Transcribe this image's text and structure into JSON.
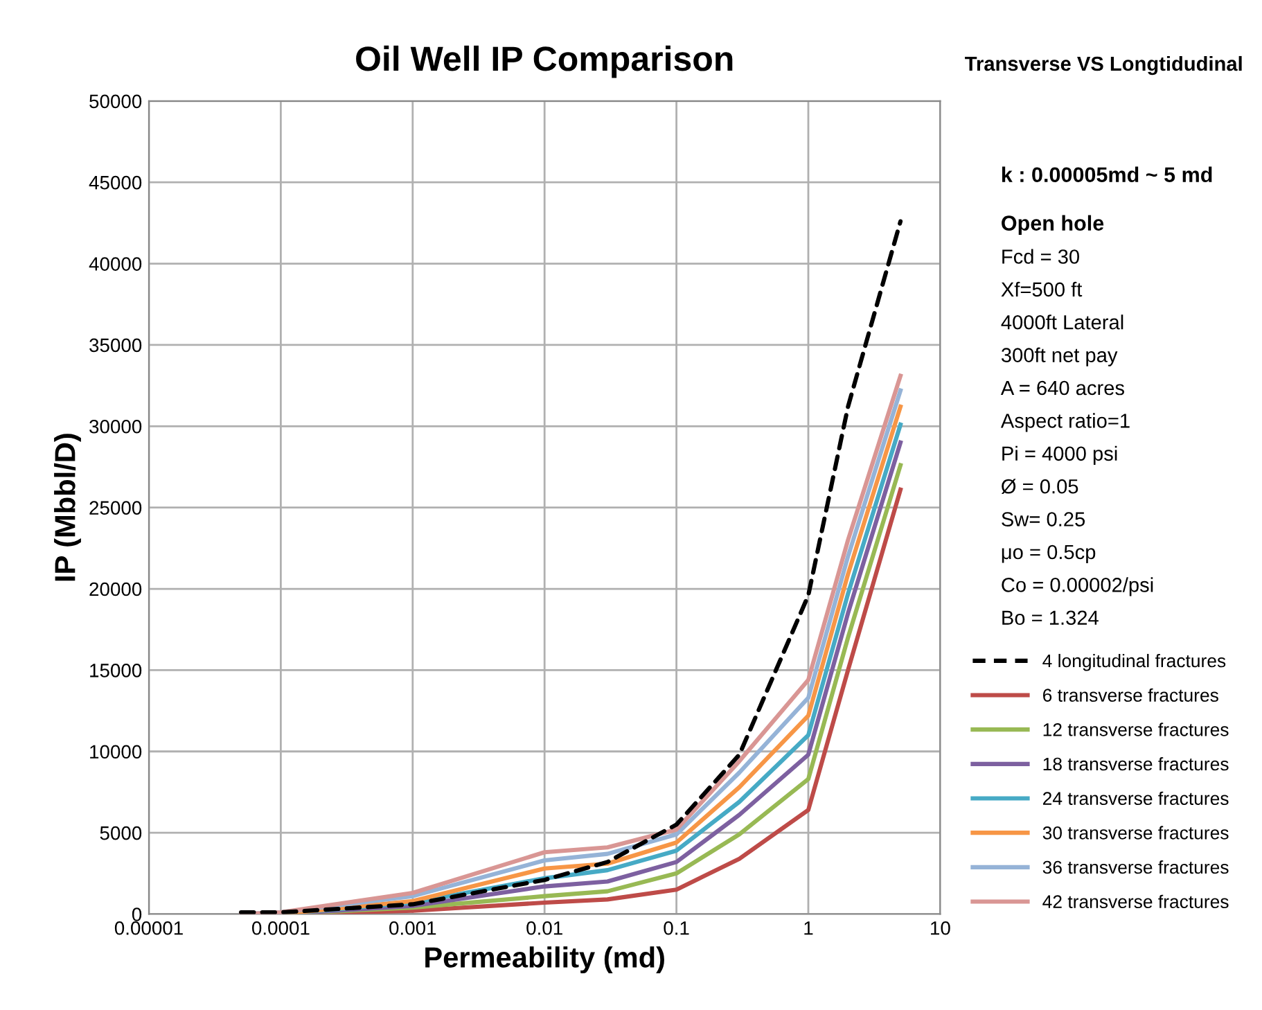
{
  "chart_data": {
    "type": "line",
    "title": "Oil Well IP Comparison",
    "subtitle": "Transverse VS Longtidudinal",
    "xlabel": "Permeability (md)",
    "ylabel": "IP (Mbbl/D)",
    "annotations": [
      "k : 0.00005md ~ 5 md",
      "Open hole",
      "Fcd = 30",
      "Xf=500 ft",
      "4000ft Lateral",
      "300ft net pay",
      "A = 640 acres",
      "Aspect ratio=1",
      "Pi = 4000 psi",
      "Ø = 0.05",
      "Sw= 0.25",
      "μo = 0.5cp",
      "Co = 0.00002/psi",
      "Bo = 1.324"
    ],
    "log": "x",
    "xlim": [
      1e-05,
      10
    ],
    "ylim": [
      0,
      50000
    ],
    "xticks": [
      {
        "value": 1e-05,
        "label": "0.00001"
      },
      0.0001,
      0.001,
      0.01,
      0.1,
      1,
      10
    ],
    "yticks": [
      0,
      5000,
      10000,
      15000,
      20000,
      25000,
      30000,
      35000,
      40000,
      45000,
      50000
    ],
    "grid": true,
    "legend": "right",
    "marker": "none",
    "x": [
      5e-05,
      0.0001,
      0.001,
      0.01,
      0.03,
      0.1,
      0.3,
      1,
      2,
      5
    ],
    "series": [
      {
        "name": "4 longitudinal fractures",
        "color": "#000000",
        "line_style": "dashed",
        "values": [
          100,
          100,
          600,
          2100,
          3200,
          5500,
          9800,
          19600,
          31200,
          42600
        ]
      },
      {
        "name": "6 transverse fractures",
        "color": "#be4b48",
        "values": [
          0,
          0,
          200,
          700,
          900,
          1500,
          3400,
          6400,
          15000,
          26100
        ]
      },
      {
        "name": "12 transverse fractures",
        "color": "#98b954",
        "values": [
          0,
          0,
          400,
          1100,
          1400,
          2500,
          4900,
          8300,
          17000,
          27600
        ]
      },
      {
        "name": "18 transverse fractures",
        "color": "#7d60a0",
        "values": [
          0,
          0,
          500,
          1700,
          2000,
          3200,
          6100,
          9800,
          18500,
          29000
        ]
      },
      {
        "name": "24 transverse fractures",
        "color": "#46aac5",
        "values": [
          0,
          0,
          700,
          2200,
          2700,
          3900,
          6900,
          11000,
          19700,
          30100
        ]
      },
      {
        "name": "30 transverse fractures",
        "color": "#f79646",
        "values": [
          0,
          0,
          800,
          2800,
          3100,
          4400,
          7800,
          12200,
          20900,
          31200
        ]
      },
      {
        "name": "36 transverse fractures",
        "color": "#95b3d7",
        "values": [
          0,
          100,
          1100,
          3300,
          3700,
          4900,
          8700,
          13300,
          22000,
          32200
        ]
      },
      {
        "name": "42 transverse fractures",
        "color": "#d99694",
        "values": [
          0,
          100,
          1300,
          3800,
          4100,
          5200,
          9400,
          14400,
          23000,
          33100
        ]
      }
    ]
  }
}
